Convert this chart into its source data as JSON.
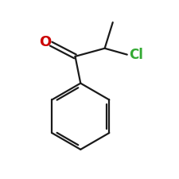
{
  "background_color": "#ffffff",
  "bond_color": "#1a1a1a",
  "O_color": "#cc0000",
  "Cl_color": "#33aa33",
  "O_label": "O",
  "Cl_label": "Cl",
  "figsize": [
    2.25,
    2.25
  ],
  "dpi": 100,
  "xlim": [
    0,
    10
  ],
  "ylim": [
    0,
    10
  ]
}
